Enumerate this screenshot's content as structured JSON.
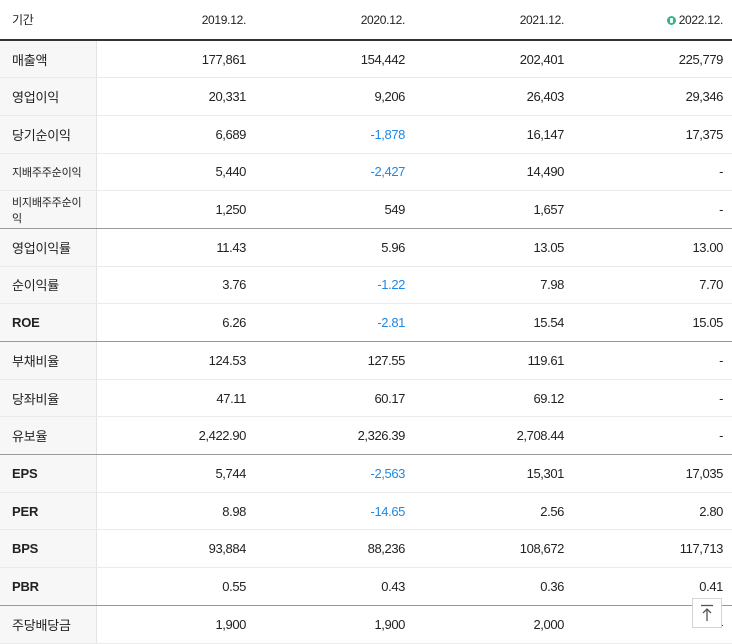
{
  "table": {
    "header": {
      "label": "기간",
      "periods": [
        "2019.12.",
        "2020.12.",
        "2021.12.",
        "2022.12."
      ],
      "estimate_icon": "estimate-badge-icon"
    },
    "rows": [
      {
        "label": "매출액",
        "values": [
          "177,861",
          "154,442",
          "202,401",
          "225,779"
        ]
      },
      {
        "label": "영업이익",
        "values": [
          "20,331",
          "9,206",
          "26,403",
          "29,346"
        ]
      },
      {
        "label": "당기순이익",
        "values": [
          "6,689",
          "-1,878",
          "16,147",
          "17,375"
        ]
      },
      {
        "label": "지배주주순이익",
        "values": [
          "5,440",
          "-2,427",
          "14,490",
          "-"
        ]
      },
      {
        "label": "비지배주주순이익",
        "values": [
          "1,250",
          "549",
          "1,657",
          "-"
        ]
      },
      {
        "label": "영업이익률",
        "values": [
          "11.43",
          "5.96",
          "13.05",
          "13.00"
        ]
      },
      {
        "label": "순이익률",
        "values": [
          "3.76",
          "-1.22",
          "7.98",
          "7.70"
        ]
      },
      {
        "label": "ROE",
        "values": [
          "6.26",
          "-2.81",
          "15.54",
          "15.05"
        ]
      },
      {
        "label": "부채비율",
        "values": [
          "124.53",
          "127.55",
          "119.61",
          "-"
        ]
      },
      {
        "label": "당좌비율",
        "values": [
          "47.11",
          "60.17",
          "69.12",
          "-"
        ]
      },
      {
        "label": "유보율",
        "values": [
          "2,422.90",
          "2,326.39",
          "2,708.44",
          "-"
        ]
      },
      {
        "label": "EPS",
        "values": [
          "5,744",
          "-2,563",
          "15,301",
          "17,035"
        ]
      },
      {
        "label": "PER",
        "values": [
          "8.98",
          "-14.65",
          "2.56",
          "2.80"
        ]
      },
      {
        "label": "BPS",
        "values": [
          "93,884",
          "88,236",
          "108,672",
          "117,713"
        ]
      },
      {
        "label": "PBR",
        "values": [
          "0.55",
          "0.43",
          "0.36",
          "0.41"
        ]
      },
      {
        "label": "주당배당금",
        "values": [
          "1,900",
          "1,900",
          "2,000",
          "-"
        ]
      }
    ]
  },
  "scroll_top": {
    "icon": "arrow-up-icon"
  },
  "colors": {
    "negative": "#1e88e5",
    "estimate_badge": "#34b48f",
    "label_bg": "#f7f7f7"
  }
}
